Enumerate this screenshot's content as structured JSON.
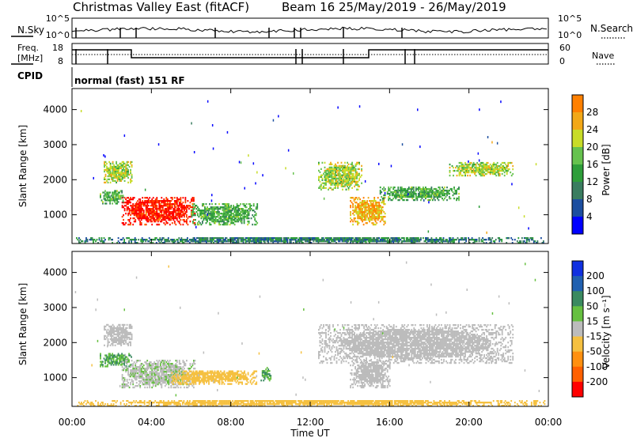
{
  "title": "Christmas Valley East (fitACF)",
  "subtitle": "Beam 16 25/May/2019 - 26/May/2019",
  "nsky_label": "N.Sky",
  "nsearch_label": "N.Search",
  "nsky_ticks": [
    "10^5",
    "10^0"
  ],
  "nsearch_ticks": [
    "10^5",
    "10^0"
  ],
  "freq_label_1": "Freq.",
  "freq_label_2": "[MHz]",
  "freq_ticks": [
    "18",
    "8"
  ],
  "nave_label": "Nave",
  "nave_ticks": [
    "60",
    "0"
  ],
  "cpid_label": "CPID",
  "cpid_text": "normal (fast) 151 RF",
  "colors": {
    "power": [
      "#0000ff",
      "#1c4ea0",
      "#3a7d60",
      "#2e9e3a",
      "#66c24e",
      "#c8dc28",
      "#f2a818",
      "#ff8000",
      "#ff4000",
      "#ff0000"
    ],
    "velocity": [
      "#1030e0",
      "#2060b0",
      "#3a8a60",
      "#66c040",
      "#bcbcbc",
      "#f5c040",
      "#ff9010",
      "#ff6000",
      "#ff0000"
    ]
  },
  "chart_data": [
    {
      "type": "heatmap",
      "name": "power",
      "ylabel": "Slant Range [km]",
      "yticks": [
        1000,
        2000,
        3000,
        4000
      ],
      "ylim": [
        180,
        4600
      ],
      "xlim": [
        0,
        24
      ],
      "xticks": [
        0,
        4,
        8,
        12,
        16,
        20,
        24
      ],
      "colorbar_label": "Power [dB]",
      "colorbar_ticks": [
        "4",
        "8",
        "12",
        "16",
        "20",
        "24",
        "28"
      ],
      "regions": [
        {
          "t0": 1.6,
          "t1": 3.0,
          "r0": 1900,
          "r1": 2500,
          "value": 16
        },
        {
          "t0": 2.5,
          "t1": 6.2,
          "r0": 700,
          "r1": 1500,
          "value": 28
        },
        {
          "t0": 6.0,
          "t1": 9.3,
          "r0": 700,
          "r1": 1300,
          "value": 12
        },
        {
          "t0": 1.4,
          "t1": 2.6,
          "r0": 1300,
          "r1": 1700,
          "value": 12
        },
        {
          "t0": 12.4,
          "t1": 14.6,
          "r0": 1700,
          "r1": 2500,
          "value": 16
        },
        {
          "t0": 14.0,
          "t1": 15.8,
          "r0": 700,
          "r1": 1500,
          "value": 20
        },
        {
          "t0": 15.5,
          "t1": 19.5,
          "r0": 1400,
          "r1": 1800,
          "value": 12
        },
        {
          "t0": 19.0,
          "t1": 22.2,
          "r0": 2100,
          "r1": 2500,
          "value": 16
        },
        {
          "t0": 0.2,
          "t1": 23.8,
          "r0": 180,
          "r1": 350,
          "value": 8
        }
      ]
    },
    {
      "type": "heatmap",
      "name": "velocity",
      "ylabel": "Slant Range [km]",
      "xlabel": "Time UT",
      "yticks": [
        1000,
        2000,
        3000,
        4000
      ],
      "ylim": [
        180,
        4600
      ],
      "xlim": [
        0,
        24
      ],
      "xticks": [
        0,
        4,
        8,
        12,
        16,
        20,
        24
      ],
      "xtick_labels": [
        "00:00",
        "04:00",
        "08:00",
        "12:00",
        "16:00",
        "20:00",
        "00:00"
      ],
      "colorbar_label": "Velocity [m s⁻¹]",
      "colorbar_ticks": [
        "200",
        "100",
        "50",
        "15",
        "-15",
        "-50",
        "-100",
        "-200"
      ],
      "regions": [
        {
          "t0": 1.6,
          "t1": 3.0,
          "r0": 1900,
          "r1": 2500,
          "value": 0
        },
        {
          "t0": 1.4,
          "t1": 3.0,
          "r0": 1300,
          "r1": 1700,
          "value": 30
        },
        {
          "t0": 2.5,
          "t1": 6.2,
          "r0": 700,
          "r1": 1500,
          "value": 10
        },
        {
          "t0": 5.0,
          "t1": 9.3,
          "r0": 800,
          "r1": 1200,
          "value": -30
        },
        {
          "t0": 9.5,
          "t1": 10.0,
          "r0": 900,
          "r1": 1300,
          "value": 30
        },
        {
          "t0": 12.4,
          "t1": 22.2,
          "r0": 1400,
          "r1": 2500,
          "value": 0
        },
        {
          "t0": 14.0,
          "t1": 16.0,
          "r0": 700,
          "r1": 1500,
          "value": 0
        },
        {
          "t0": 0.2,
          "t1": 23.8,
          "r0": 180,
          "r1": 350,
          "value": -40
        }
      ]
    }
  ]
}
